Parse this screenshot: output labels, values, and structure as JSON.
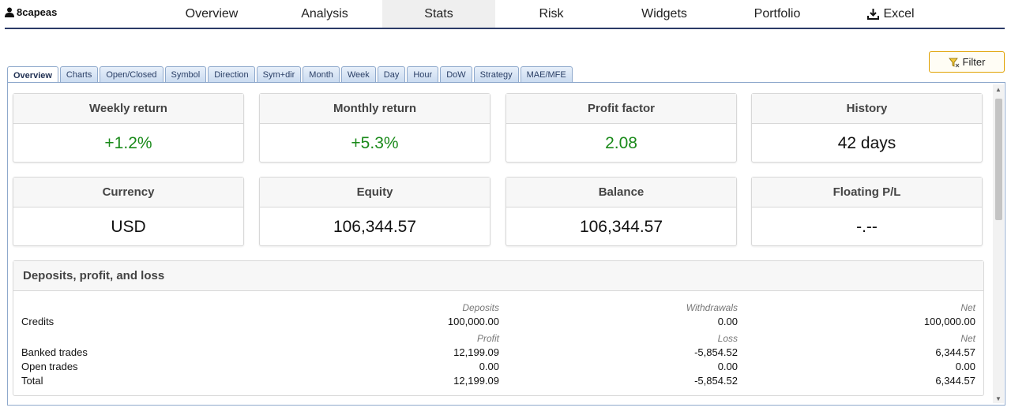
{
  "user": {
    "name": "8capeas",
    "icon": "user-icon"
  },
  "nav": {
    "tabs": [
      {
        "label": "Overview"
      },
      {
        "label": "Analysis"
      },
      {
        "label": "Stats"
      },
      {
        "label": "Risk"
      },
      {
        "label": "Widgets"
      },
      {
        "label": "Portfolio"
      },
      {
        "label": "Excel",
        "icon": "download-icon"
      }
    ],
    "active": "Stats"
  },
  "filter": {
    "label": "Filter",
    "icon": "filter-icon",
    "accent": "#e0a100"
  },
  "subtabs": {
    "items": [
      "Overview",
      "Charts",
      "Open/Closed",
      "Symbol",
      "Direction",
      "Sym+dir",
      "Month",
      "Week",
      "Day",
      "Hour",
      "DoW",
      "Strategy",
      "MAE/MFE"
    ],
    "active": "Overview"
  },
  "cards": [
    {
      "title": "Weekly return",
      "value": "+1.2%",
      "color": "#1a8a1a"
    },
    {
      "title": "Monthly return",
      "value": "+5.3%",
      "color": "#1a8a1a"
    },
    {
      "title": "Profit factor",
      "value": "2.08",
      "color": "#1a8a1a"
    },
    {
      "title": "History",
      "value": "42 days"
    },
    {
      "title": "Currency",
      "value": "USD"
    },
    {
      "title": "Equity",
      "value": "106,344.57"
    },
    {
      "title": "Balance",
      "value": "106,344.57"
    },
    {
      "title": "Floating P/L",
      "value": "-.--"
    }
  ],
  "dpl": {
    "title": "Deposits, profit, and loss",
    "credits_header": {
      "c1": "Deposits",
      "c2": "Withdrawals",
      "c3": "Net"
    },
    "credits": {
      "label": "Credits",
      "c1": "100,000.00",
      "c2": "0.00",
      "c3": "100,000.00"
    },
    "trades_header": {
      "c1": "Profit",
      "c2": "Loss",
      "c3": "Net"
    },
    "banked": {
      "label": "Banked trades",
      "c1": "12,199.09",
      "c2": "-5,854.52",
      "c3": "6,344.57"
    },
    "open": {
      "label": "Open trades",
      "c1": "0.00",
      "c2": "0.00",
      "c3": "0.00"
    },
    "total": {
      "label": "Total",
      "c1": "12,199.09",
      "c2": "-5,854.52",
      "c3": "6,344.57"
    }
  }
}
